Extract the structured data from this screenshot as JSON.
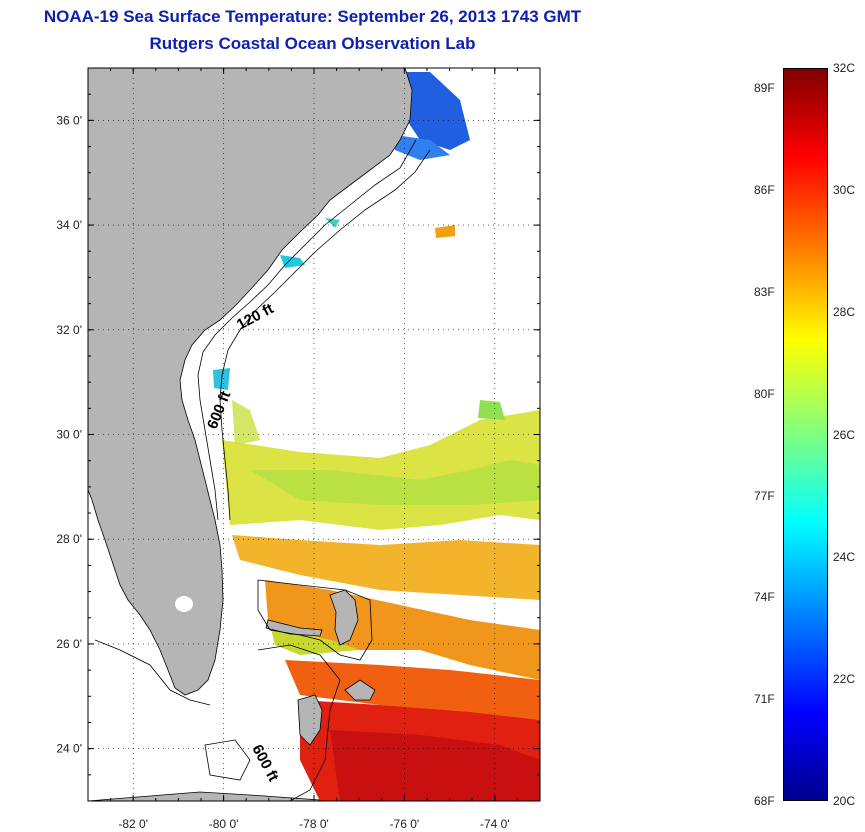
{
  "header": {
    "title": "NOAA-19 Sea Surface Temperature:  September 26, 2013 1743 GMT",
    "subtitle": "Rutgers Coastal Ocean Observation Lab"
  },
  "map": {
    "lon_range": [
      -83,
      -73
    ],
    "lat_range": [
      23,
      37
    ],
    "lat_ticks": [
      {
        "value": 36,
        "label": "36 0'"
      },
      {
        "value": 34,
        "label": "34 0'"
      },
      {
        "value": 32,
        "label": "32 0'"
      },
      {
        "value": 30,
        "label": "30 0'"
      },
      {
        "value": 28,
        "label": "28 0'"
      },
      {
        "value": 26,
        "label": "26 0'"
      },
      {
        "value": 24,
        "label": "24 0'"
      }
    ],
    "lon_ticks": [
      {
        "value": -82,
        "label": "-82 0'"
      },
      {
        "value": -80,
        "label": "-80 0'"
      },
      {
        "value": -78,
        "label": "-78 0'"
      },
      {
        "value": -76,
        "label": "-76 0'"
      },
      {
        "value": -74,
        "label": "-74 0'"
      }
    ],
    "contour_labels": {
      "c120": "120 ft",
      "c600a": "600 ft",
      "c600b": "600 ft"
    },
    "land_color": "#b5b5b5",
    "grid": "dotted"
  },
  "colorbar": {
    "range_c": [
      20,
      32
    ],
    "fahrenheit_labels": [
      "89F",
      "86F",
      "83F",
      "80F",
      "77F",
      "74F",
      "71F",
      "68F"
    ],
    "celsius_labels": [
      "32C",
      "30C",
      "28C",
      "26C",
      "24C",
      "22C",
      "20C"
    ],
    "colormap": "jet"
  }
}
